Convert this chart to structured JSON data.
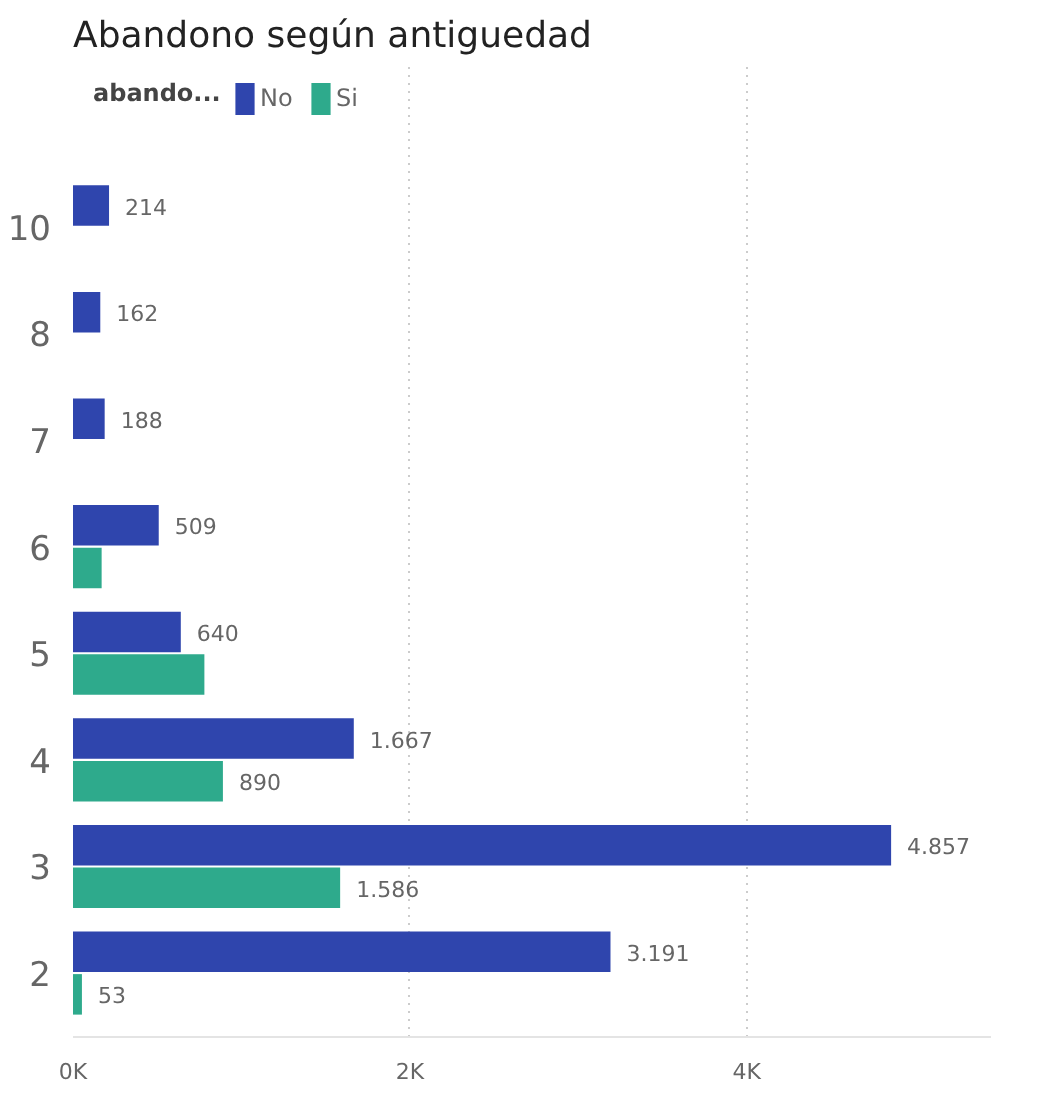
{
  "chart_data": {
    "type": "bar",
    "orientation": "horizontal",
    "title": "Abandono según antiguedad",
    "legend_title": "abando...",
    "legend": "top left",
    "categories": [
      "10",
      "8",
      "7",
      "6",
      "5",
      "4",
      "3",
      "2"
    ],
    "series": [
      {
        "name": "No",
        "color": "#2f45ad",
        "values": [
          214,
          162,
          188,
          509,
          640,
          1667,
          4857,
          3191
        ],
        "value_labels": [
          "214",
          "162",
          "188",
          "509",
          "640",
          "1.667",
          "4.857",
          "3.191"
        ]
      },
      {
        "name": "Si",
        "color": "#2eaa8c",
        "values": [
          null,
          null,
          null,
          170,
          780,
          890,
          1586,
          53
        ],
        "value_labels": [
          null,
          null,
          null,
          null,
          null,
          "890",
          "1.586",
          "53"
        ]
      }
    ],
    "xlim": [
      0,
      5450
    ],
    "xticks": [
      {
        "value": 0,
        "label": "0K"
      },
      {
        "value": 2000,
        "label": "2K"
      },
      {
        "value": 4000,
        "label": "4K"
      }
    ],
    "grid": "x"
  }
}
